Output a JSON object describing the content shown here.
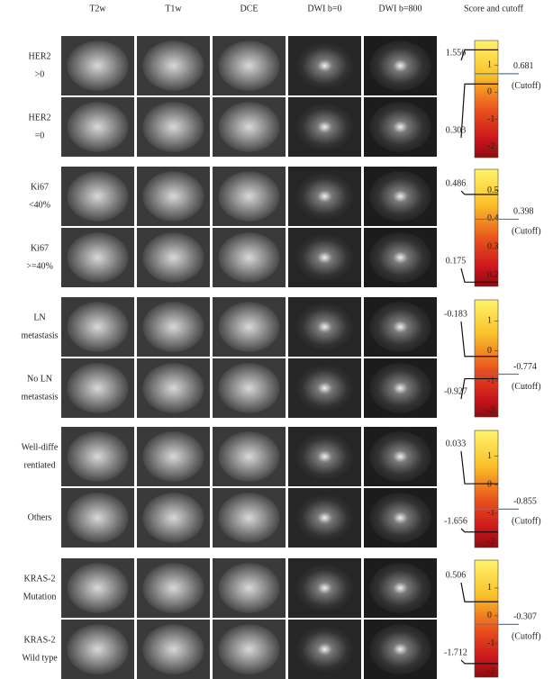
{
  "columns": [
    "T2w",
    "T1w",
    "DCE",
    "DWI b=0",
    "DWI b=800",
    "Score and cutoff"
  ],
  "groups": [
    {
      "rows": [
        [
          "HER2",
          ">0"
        ],
        [
          "HER2",
          "=0"
        ]
      ],
      "scores": [
        1.556,
        0.303
      ],
      "lim": [
        -2.4,
        1.9
      ],
      "ticks": [
        1,
        0,
        -1,
        -2
      ],
      "cutoff": 0.681,
      "cutoff_label": "(Cutoff)"
    },
    {
      "rows": [
        [
          "Ki67",
          "<40%"
        ],
        [
          "Ki67",
          ">=40%"
        ]
      ],
      "scores": [
        0.486,
        0.175
      ],
      "lim": [
        0.16,
        0.575
      ],
      "ticks": [
        0.5,
        0.4,
        0.3,
        0.2
      ],
      "cutoff": 0.398,
      "cutoff_label": "(Cutoff)"
    },
    {
      "rows": [
        [
          "LN",
          "metastasis"
        ],
        [
          "No LN",
          "metastasis"
        ]
      ],
      "scores": [
        -0.183,
        -0.927
      ],
      "lim": [
        -2.2,
        1.7
      ],
      "ticks": [
        1,
        0,
        -1,
        -2
      ],
      "cutoff": -0.774,
      "cutoff_label": "(Cutoff)"
    },
    {
      "rows": [
        [
          "Well-diffe",
          "rentiated"
        ],
        [
          "Others"
        ]
      ],
      "scores": [
        0.033,
        -1.656
      ],
      "lim": [
        -2.2,
        1.9
      ],
      "ticks": [
        1,
        0,
        -1,
        -2
      ],
      "cutoff": -0.855,
      "cutoff_label": "(Cutoff)"
    },
    {
      "rows": [
        [
          "KRAS-2",
          "Mutation"
        ],
        [
          "KRAS-2",
          "Wild type"
        ]
      ],
      "scores": [
        0.506,
        -1.712
      ],
      "lim": [
        -2.2,
        2.0
      ],
      "ticks": [
        1,
        0,
        -1,
        -2
      ],
      "cutoff": -0.307,
      "cutoff_label": "(Cutoff)"
    }
  ]
}
